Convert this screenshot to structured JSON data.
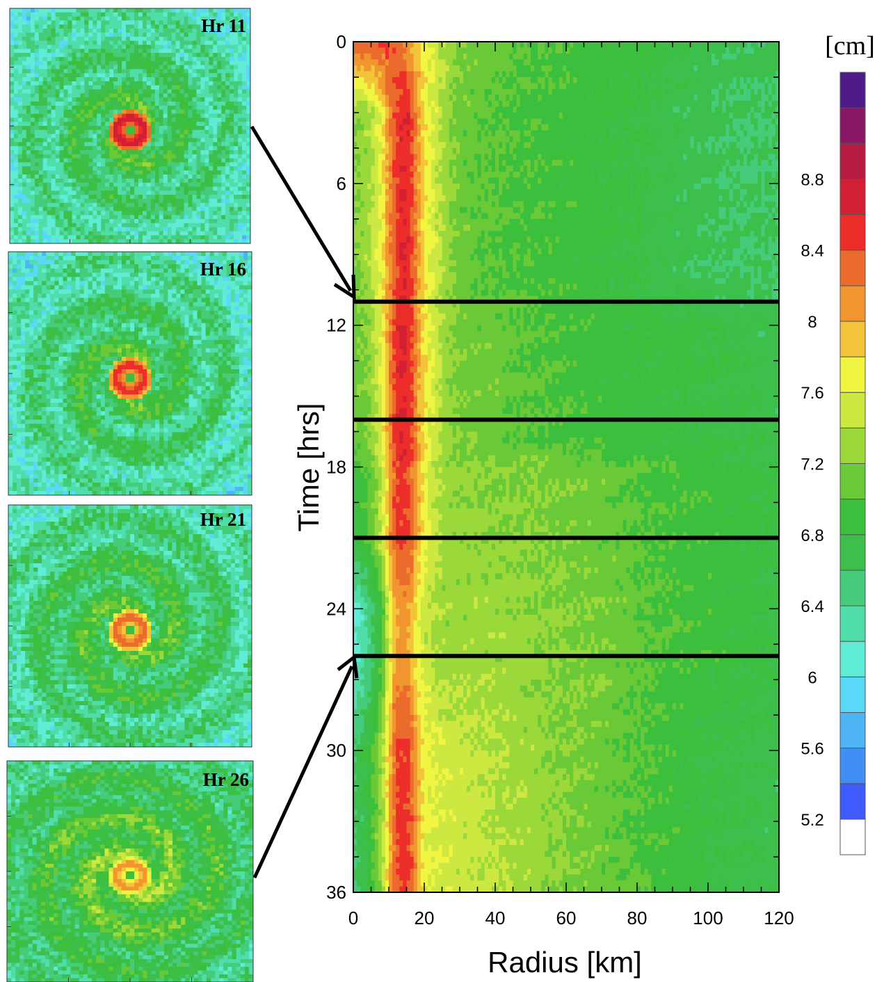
{
  "chart_data": [
    {
      "type": "heatmap",
      "xlabel": "Radius [km]",
      "ylabel": "Time [hrs]",
      "xlim": [
        0,
        120
      ],
      "ylim": [
        0,
        36
      ],
      "y_inverted": true,
      "x_ticks": [
        0,
        20,
        40,
        60,
        80,
        100,
        120
      ],
      "y_ticks": [
        0,
        6,
        12,
        18,
        24,
        30,
        36
      ],
      "x_tick_labels": [
        "0",
        "20",
        "40",
        "60",
        "80",
        100,
        120
      ],
      "y_tick_labels": [
        "0",
        "6",
        "12",
        "18",
        "24",
        "30",
        "36"
      ],
      "highlight_times": [
        11,
        16,
        21,
        26
      ],
      "colorbar": {
        "unit": "[cm]",
        "placement": "right",
        "min": 5.0,
        "max": 9.0,
        "step": 0.2,
        "tick_values": [
          5.2,
          5.6,
          6,
          6.4,
          6.8,
          7.2,
          7.6,
          8,
          8.4,
          8.8
        ],
        "tick_labels": [
          "5.2",
          "5.6",
          "6",
          "6.4",
          "6.8",
          "7.2",
          "7.6",
          "8",
          "8.4",
          "8.8"
        ],
        "colors": [
          "#ffffff",
          "#3d5bff",
          "#3f8ff4",
          "#4fb4f4",
          "#5ad8f8",
          "#5eecd5",
          "#4fddaa",
          "#45cc7a",
          "#3dbf4c",
          "#3cbf3c",
          "#6ac936",
          "#9bd83a",
          "#cde840",
          "#f0f542",
          "#f3c43a",
          "#f1962f",
          "#eb6b2c",
          "#ec2d2a",
          "#d21f33",
          "#b61c3f",
          "#8a1766",
          "#4e1b88"
        ]
      },
      "profile_anchors": {
        "radius_km": [
          0,
          4,
          8,
          10,
          12,
          14,
          16,
          18,
          20,
          22,
          26,
          30,
          40,
          50,
          60,
          70,
          80,
          90,
          100,
          110,
          120
        ],
        "time_0": [
          8.4,
          8.4,
          8.4,
          8.4,
          8.3,
          8.2,
          8.0,
          7.8,
          7.7,
          7.6,
          7.4,
          7.2,
          7.1,
          7.0,
          7.0,
          6.9,
          6.9,
          6.8,
          6.7,
          6.7,
          6.7
        ],
        "time_3_to_10": [
          7.2,
          7.3,
          7.7,
          8.1,
          8.4,
          8.6,
          8.5,
          8.1,
          7.8,
          7.6,
          7.3,
          7.1,
          7.0,
          6.95,
          6.9,
          6.85,
          6.8,
          6.7,
          6.65,
          6.6,
          6.6
        ],
        "time_12_to_17": [
          7.1,
          7.2,
          7.6,
          8.1,
          8.5,
          8.6,
          8.5,
          8.1,
          7.8,
          7.6,
          7.3,
          7.15,
          7.1,
          7.0,
          6.95,
          6.9,
          6.85,
          6.85,
          6.8,
          6.75,
          6.7
        ],
        "time_18_to_21": [
          6.8,
          7.0,
          7.4,
          8.0,
          8.4,
          8.5,
          8.4,
          8.0,
          7.7,
          7.5,
          7.3,
          7.25,
          7.2,
          7.2,
          7.15,
          7.1,
          7.0,
          6.95,
          6.9,
          6.85,
          6.8
        ],
        "time_24_to_26": [
          6.1,
          6.4,
          6.9,
          7.6,
          8.0,
          8.1,
          8.0,
          7.7,
          7.5,
          7.4,
          7.3,
          7.3,
          7.3,
          7.25,
          7.2,
          7.15,
          7.05,
          6.95,
          6.9,
          6.85,
          6.8
        ],
        "time_30_to_36": [
          6.6,
          6.8,
          7.3,
          7.9,
          8.4,
          8.5,
          8.4,
          8.0,
          7.7,
          7.6,
          7.55,
          7.5,
          7.4,
          7.3,
          7.2,
          7.1,
          7.0,
          6.9,
          6.8,
          6.75,
          6.7
        ]
      }
    },
    {
      "type": "heatmap",
      "panel": "Hr 11",
      "title": "Hr 11",
      "eye_ring_max": 8.8,
      "background_mean": 6.9
    },
    {
      "type": "heatmap",
      "panel": "Hr 16",
      "title": "Hr 16",
      "eye_ring_max": 8.6,
      "background_mean": 6.9
    },
    {
      "type": "heatmap",
      "panel": "Hr 21",
      "title": "Hr 21",
      "eye_ring_max": 8.4,
      "background_mean": 7.0
    },
    {
      "type": "heatmap",
      "panel": "Hr 26",
      "title": "Hr 26",
      "eye_ring_max": 8.2,
      "background_mean": 7.2
    }
  ]
}
